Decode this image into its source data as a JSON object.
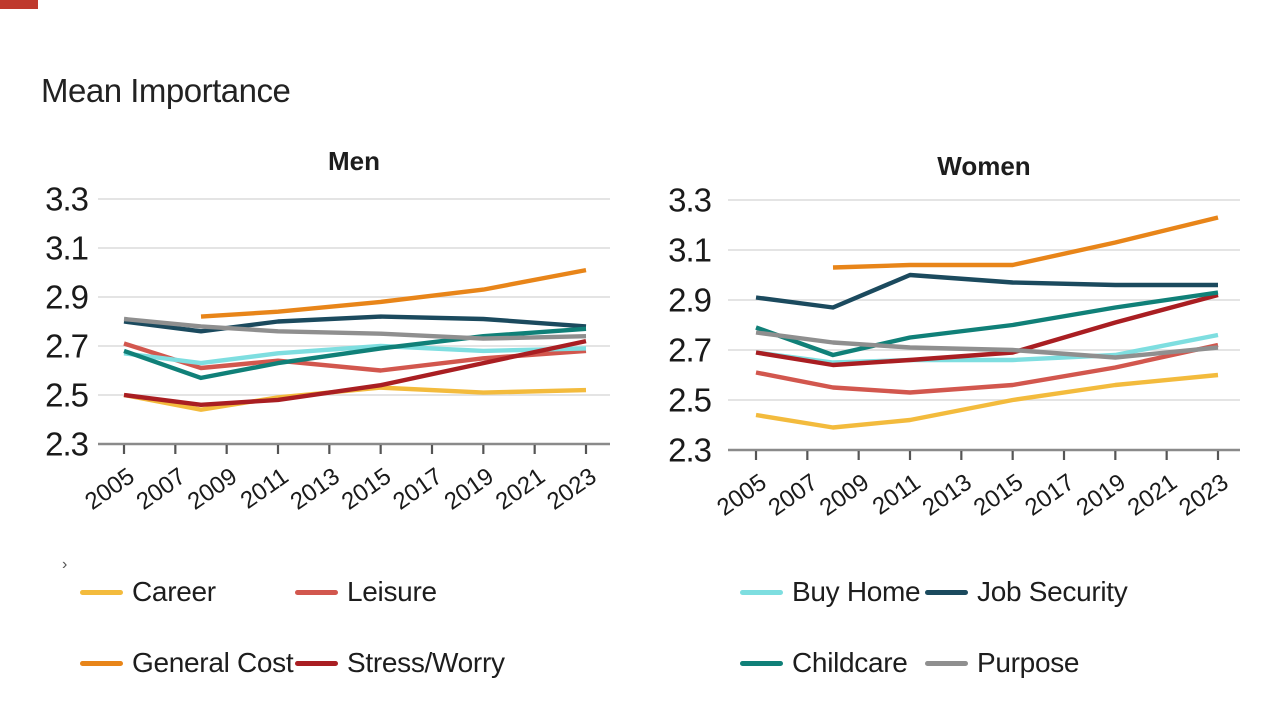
{
  "page": {
    "title": "Mean Importance",
    "corner_glyph": "›"
  },
  "decor": {
    "top_left_bar_color": "#bf3a2e",
    "gridline_color": "#dcdcdc",
    "axis_line_color": "#8a8a8a",
    "tick_color": "#555555",
    "text_color": "#1a1a1a"
  },
  "chart_data": [
    {
      "type": "line",
      "title": "Men",
      "xlabel": "",
      "ylabel": "",
      "ylim": [
        2.3,
        3.3
      ],
      "grid": "horizontal",
      "x": [
        2005,
        2008,
        2011,
        2015,
        2019,
        2023
      ],
      "xtick_labels": [
        "2005",
        "2007",
        "2009",
        "2011",
        "2013",
        "2015",
        "2017",
        "2019",
        "2021",
        "2023"
      ],
      "ytick_labels": [
        "3.3",
        "3.1",
        "2.9",
        "2.7",
        "2.5",
        "2.3"
      ],
      "ytick_values": [
        3.3,
        3.1,
        2.9,
        2.7,
        2.5,
        2.3
      ],
      "series": [
        {
          "name": "Career",
          "color": "#f3bb3d",
          "values": [
            2.5,
            2.44,
            2.49,
            2.53,
            2.51,
            2.52
          ]
        },
        {
          "name": "Leisure",
          "color": "#d2574e",
          "values": [
            2.71,
            2.61,
            2.64,
            2.6,
            2.65,
            2.68
          ]
        },
        {
          "name": "Buy Home",
          "color": "#7edee0",
          "values": [
            2.67,
            2.63,
            2.67,
            2.7,
            2.68,
            2.69
          ]
        },
        {
          "name": "General Cost",
          "color": "#e88519",
          "values": [
            null,
            2.82,
            2.84,
            2.88,
            2.93,
            3.01
          ]
        },
        {
          "name": "Stress/Worry",
          "color": "#a91e22",
          "values": [
            2.5,
            2.46,
            2.48,
            2.54,
            2.63,
            2.72
          ]
        },
        {
          "name": "Job Security",
          "color": "#1b4a5e",
          "values": [
            2.8,
            2.76,
            2.8,
            2.82,
            2.81,
            2.78
          ]
        },
        {
          "name": "Childcare",
          "color": "#108078",
          "values": [
            2.68,
            2.57,
            2.63,
            2.69,
            2.74,
            2.77
          ]
        },
        {
          "name": "Purpose",
          "color": "#8f8f8f",
          "values": [
            2.81,
            2.78,
            2.76,
            2.75,
            2.73,
            2.74
          ]
        }
      ]
    },
    {
      "type": "line",
      "title": "Women",
      "xlabel": "",
      "ylabel": "",
      "ylim": [
        2.3,
        3.3
      ],
      "grid": "horizontal",
      "x": [
        2005,
        2008,
        2011,
        2015,
        2019,
        2023
      ],
      "xtick_labels": [
        "2005",
        "2007",
        "2009",
        "2011",
        "2013",
        "2015",
        "2017",
        "2019",
        "2021",
        "2023"
      ],
      "ytick_labels": [
        "3.3",
        "3.1",
        "2.9",
        "2.7",
        "2.5",
        "2.3"
      ],
      "ytick_values": [
        3.3,
        3.1,
        2.9,
        2.7,
        2.5,
        2.3
      ],
      "series": [
        {
          "name": "Career",
          "color": "#f3bb3d",
          "values": [
            2.44,
            2.39,
            2.42,
            2.5,
            2.56,
            2.6
          ]
        },
        {
          "name": "Leisure",
          "color": "#d2574e",
          "values": [
            2.61,
            2.55,
            2.53,
            2.56,
            2.63,
            2.72
          ]
        },
        {
          "name": "Buy Home",
          "color": "#7edee0",
          "values": [
            2.69,
            2.65,
            2.66,
            2.66,
            2.68,
            2.76
          ]
        },
        {
          "name": "General Cost",
          "color": "#e88519",
          "values": [
            null,
            3.03,
            3.04,
            3.04,
            3.13,
            3.23
          ]
        },
        {
          "name": "Stress/Worry",
          "color": "#a91e22",
          "values": [
            2.69,
            2.64,
            2.66,
            2.69,
            2.81,
            2.92
          ]
        },
        {
          "name": "Job Security",
          "color": "#1b4a5e",
          "values": [
            2.91,
            2.87,
            3.0,
            2.97,
            2.96,
            2.96
          ]
        },
        {
          "name": "Childcare",
          "color": "#108078",
          "values": [
            2.79,
            2.68,
            2.75,
            2.8,
            2.87,
            2.93
          ]
        },
        {
          "name": "Purpose",
          "color": "#8f8f8f",
          "values": [
            2.77,
            2.73,
            2.71,
            2.7,
            2.67,
            2.71
          ]
        }
      ]
    }
  ],
  "legend": {
    "left_block": [
      {
        "label": "Career",
        "color": "#f3bb3d"
      },
      {
        "label": "Leisure",
        "color": "#d2574e"
      },
      {
        "label": "General Cost",
        "color": "#e88519"
      },
      {
        "label": "Stress/Worry",
        "color": "#a91e22"
      }
    ],
    "right_block": [
      {
        "label": "Buy Home",
        "color": "#7edee0"
      },
      {
        "label": "Job Security",
        "color": "#1b4a5e"
      },
      {
        "label": "Childcare",
        "color": "#108078"
      },
      {
        "label": "Purpose",
        "color": "#8f8f8f"
      }
    ]
  }
}
